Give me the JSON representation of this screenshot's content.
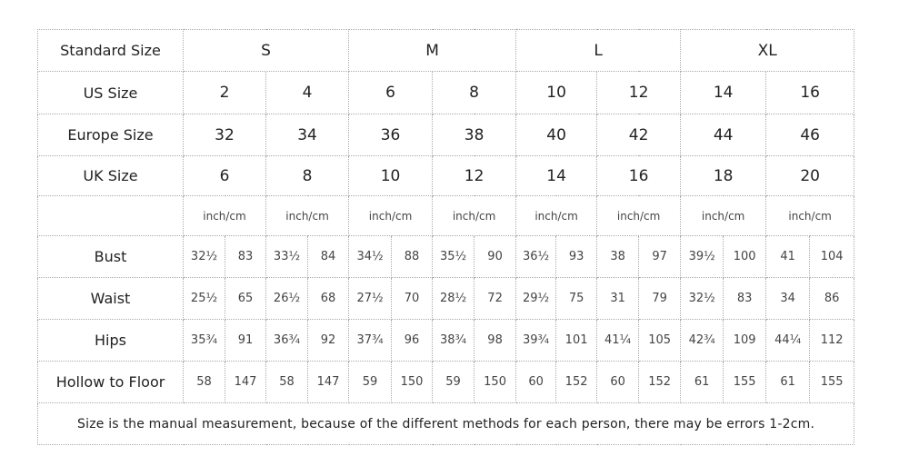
{
  "row_labels": {
    "standard": "Standard Size",
    "us": "US Size",
    "europe": "Europe Size",
    "uk": "UK Size",
    "bust": "Bust",
    "waist": "Waist",
    "hips": "Hips",
    "hollow": "Hollow to Floor"
  },
  "standard_sizes": [
    "S",
    "M",
    "L",
    "XL"
  ],
  "us_sizes": [
    "2",
    "4",
    "6",
    "8",
    "10",
    "12",
    "14",
    "16"
  ],
  "europe_sizes": [
    "32",
    "34",
    "36",
    "38",
    "40",
    "42",
    "44",
    "46"
  ],
  "uk_sizes": [
    "6",
    "8",
    "10",
    "12",
    "14",
    "16",
    "18",
    "20"
  ],
  "unit_label": "inch/cm",
  "bust": [
    "32½",
    "83",
    "33½",
    "84",
    "34½",
    "88",
    "35½",
    "90",
    "36½",
    "93",
    "38",
    "97",
    "39½",
    "100",
    "41",
    "104"
  ],
  "waist": [
    "25½",
    "65",
    "26½",
    "68",
    "27½",
    "70",
    "28½",
    "72",
    "29½",
    "75",
    "31",
    "79",
    "32½",
    "83",
    "34",
    "86"
  ],
  "hips": [
    "35¾",
    "91",
    "36¾",
    "92",
    "37¾",
    "96",
    "38¾",
    "98",
    "39¾",
    "101",
    "41¼",
    "105",
    "42¾",
    "109",
    "44¼",
    "112"
  ],
  "hollow": [
    "58",
    "147",
    "58",
    "147",
    "59",
    "150",
    "59",
    "150",
    "60",
    "152",
    "60",
    "152",
    "61",
    "155",
    "61",
    "155"
  ],
  "note": "Size is the manual measurement, because of the different methods for each person, there may be errors 1-2cm."
}
